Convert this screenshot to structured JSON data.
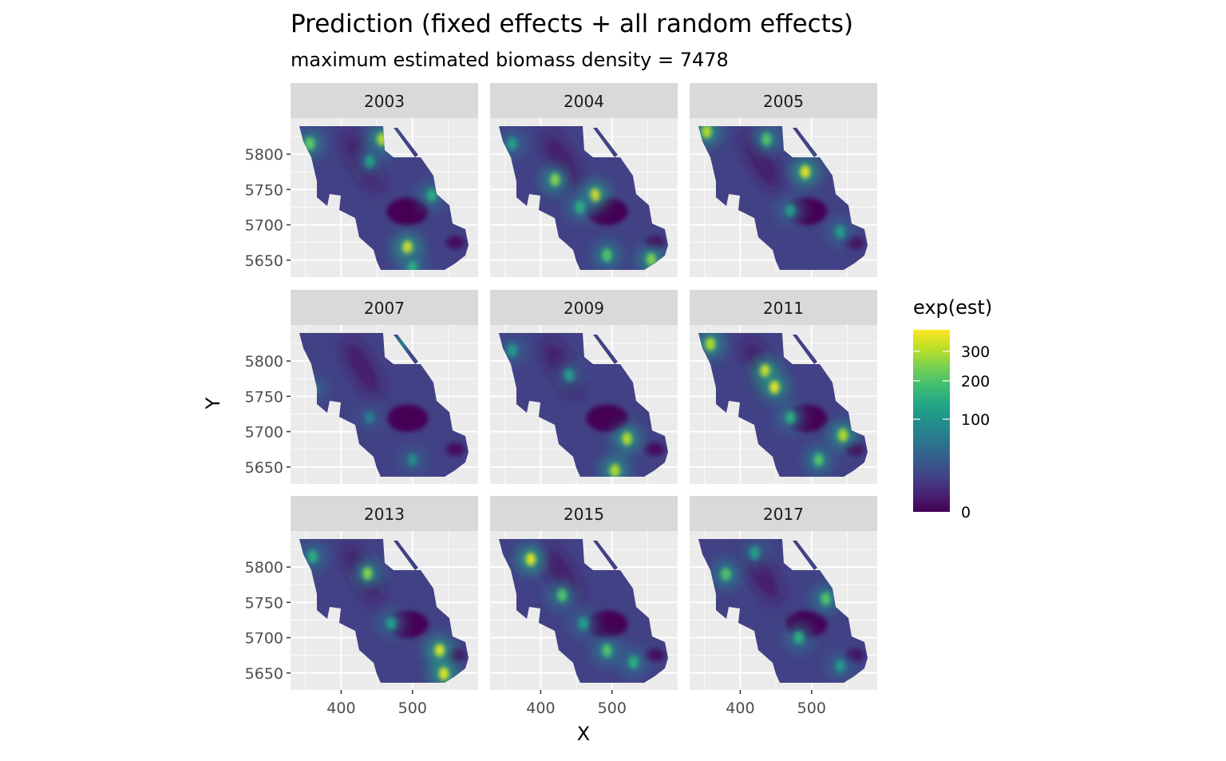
{
  "chart_data": {
    "type": "heatmap",
    "title": "Prediction (fixed effects + all random effects)",
    "subtitle": "maximum estimated biomass density = 7478",
    "xlabel": "X",
    "ylabel": "Y",
    "xlim": [
      329,
      592
    ],
    "ylim": [
      5626,
      5851
    ],
    "x_ticks": [
      400,
      500
    ],
    "y_ticks": [
      5650,
      5700,
      5750,
      5800
    ],
    "legend": {
      "title": "exp(est)",
      "scale": "sqrt",
      "limits": [
        0,
        386
      ],
      "ticks": [
        0,
        100,
        200,
        300
      ],
      "tick_labels": [
        "0",
        "100",
        "200",
        "300"
      ],
      "palette": "viridis",
      "placement": "right"
    },
    "colors": [
      "#440154",
      "#482475",
      "#414487",
      "#355f8d",
      "#2a788e",
      "#21918c",
      "#22a884",
      "#44bf70",
      "#7ad151",
      "#bddf26",
      "#fde725"
    ],
    "base_value": 14,
    "facets": [
      {
        "year": "2003",
        "hotspots": [
          [
            457,
            5821,
            300
          ],
          [
            493,
            5668,
            350
          ],
          [
            356,
            5815,
            220
          ],
          [
            527,
            5742,
            150
          ],
          [
            440,
            5790,
            120
          ],
          [
            500,
            5640,
            150
          ]
        ]
      },
      {
        "year": "2004",
        "hotspots": [
          [
            476,
            5742,
            350
          ],
          [
            420,
            5764,
            250
          ],
          [
            493,
            5657,
            200
          ],
          [
            555,
            5651,
            250
          ],
          [
            455,
            5725,
            150
          ],
          [
            360,
            5815,
            120
          ]
        ]
      },
      {
        "year": "2005",
        "hotspots": [
          [
            491,
            5775,
            350
          ],
          [
            353,
            5832,
            300
          ],
          [
            437,
            5821,
            200
          ],
          [
            470,
            5720,
            120
          ],
          [
            540,
            5690,
            120
          ]
        ]
      },
      {
        "year": "2007",
        "hotspots": [
          [
            360,
            5760,
            100
          ],
          [
            490,
            5830,
            120
          ],
          [
            500,
            5660,
            90
          ],
          [
            440,
            5720,
            70
          ]
        ]
      },
      {
        "year": "2009",
        "hotspots": [
          [
            521,
            5690,
            300
          ],
          [
            504,
            5645,
            300
          ],
          [
            440,
            5780,
            120
          ],
          [
            360,
            5815,
            110
          ]
        ]
      },
      {
        "year": "2011",
        "hotspots": [
          [
            435,
            5786,
            350
          ],
          [
            448,
            5763,
            350
          ],
          [
            544,
            5695,
            300
          ],
          [
            358,
            5824,
            300
          ],
          [
            510,
            5660,
            200
          ],
          [
            470,
            5720,
            150
          ]
        ]
      },
      {
        "year": "2013",
        "hotspots": [
          [
            437,
            5791,
            250
          ],
          [
            538,
            5682,
            350
          ],
          [
            544,
            5649,
            350
          ],
          [
            360,
            5815,
            150
          ],
          [
            470,
            5720,
            120
          ]
        ]
      },
      {
        "year": "2015",
        "hotspots": [
          [
            386,
            5811,
            350
          ],
          [
            430,
            5760,
            200
          ],
          [
            493,
            5682,
            200
          ],
          [
            530,
            5665,
            150
          ],
          [
            460,
            5720,
            120
          ]
        ]
      },
      {
        "year": "2017",
        "hotspots": [
          [
            380,
            5790,
            200
          ],
          [
            520,
            5755,
            200
          ],
          [
            482,
            5700,
            150
          ],
          [
            420,
            5820,
            120
          ],
          [
            540,
            5660,
            110
          ]
        ]
      }
    ]
  }
}
